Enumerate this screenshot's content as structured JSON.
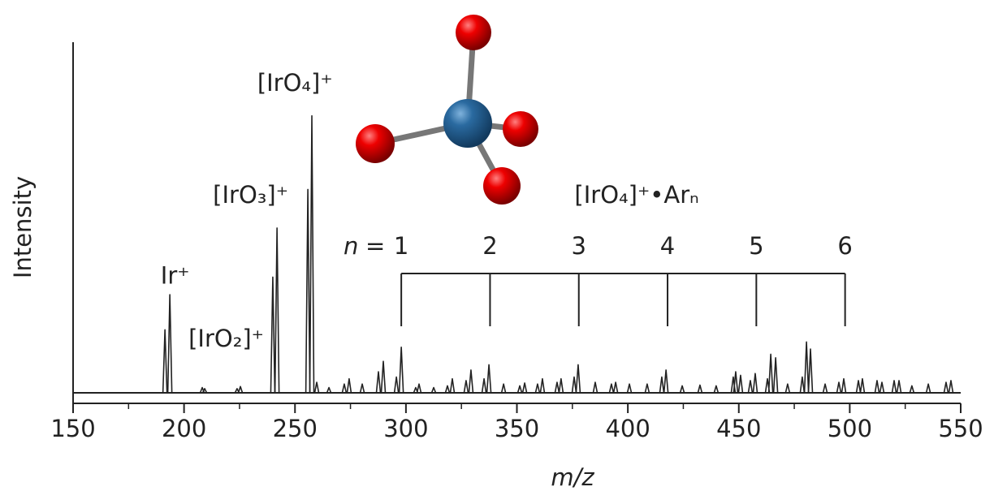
{
  "chart_data": {
    "type": "spectrum",
    "xlabel": "m/z",
    "ylabel": "Intensity",
    "xlim": [
      150,
      550
    ],
    "xticks": [
      150,
      200,
      250,
      300,
      350,
      400,
      450,
      500,
      550
    ],
    "xminor": [
      175,
      225,
      275,
      325,
      375,
      425,
      475,
      525
    ],
    "ylim": [
      0,
      100
    ],
    "color": "#222222",
    "x": [
      191.4,
      193.6,
      208.2,
      209.3,
      223.9,
      225.4,
      240,
      241.9,
      255.8,
      257.6,
      259.8,
      265.3,
      272.2,
      274.4,
      280.3,
      287.6,
      289.8,
      295.7,
      297.9,
      304.4,
      305.9,
      312.5,
      318.7,
      320.9,
      327.1,
      329.3,
      335.2,
      337.4,
      344,
      351.3,
      353.5,
      359.3,
      361.5,
      368.1,
      369.9,
      375.8,
      377.6,
      385.3,
      392.6,
      394.5,
      400.7,
      408.7,
      415.3,
      417.2,
      424.5,
      432.5,
      439.8,
      447.5,
      448.6,
      450.8,
      455.2,
      457.4,
      462.9,
      464.4,
      466.6,
      472,
      478.6,
      480.5,
      482.3,
      488.9,
      495.1,
      497.3,
      503.9,
      505.7,
      512.3,
      514.5,
      520,
      522.2,
      528,
      535.4,
      543.4,
      545.6
    ],
    "values": [
      18,
      28,
      1.5,
      1.2,
      1.2,
      1.8,
      33,
      47,
      58,
      79,
      3,
      1.5,
      2.5,
      4,
      2.5,
      6,
      9,
      4.5,
      13,
      1.5,
      2.5,
      1.5,
      2,
      4,
      3.5,
      6.5,
      4,
      8,
      2.5,
      2,
      2.8,
      2.5,
      4,
      3,
      4,
      4.5,
      8,
      3,
      2.5,
      3,
      2.5,
      2.5,
      4.5,
      6.5,
      2,
      2.2,
      2,
      4.5,
      6,
      5,
      3.5,
      5.5,
      4,
      11,
      10,
      2.5,
      4.5,
      14.5,
      12.5,
      2.5,
      3,
      4,
      3.5,
      4,
      3.5,
      3,
      3.5,
      3.5,
      2,
      2.5,
      3,
      3.5
    ],
    "annotations": [
      {
        "text": "Ir⁺",
        "x": 196,
        "y": 33
      },
      {
        "text": "[IrO₂]⁺",
        "x": 219,
        "y": 15
      },
      {
        "text": "[IrO₃]⁺",
        "x": 230,
        "y": 56
      },
      {
        "text": "[IrO₄]⁺",
        "x": 250,
        "y": 88
      },
      {
        "text": "[IrO₄]⁺•Arₙ",
        "x": 404,
        "y": 56
      }
    ],
    "cluster": {
      "symbol": "n",
      "equals": "=",
      "n": [
        1,
        2,
        3,
        4,
        5,
        6
      ],
      "mz": [
        297.9,
        337.9,
        377.9,
        417.9,
        457.9,
        497.9
      ]
    }
  }
}
